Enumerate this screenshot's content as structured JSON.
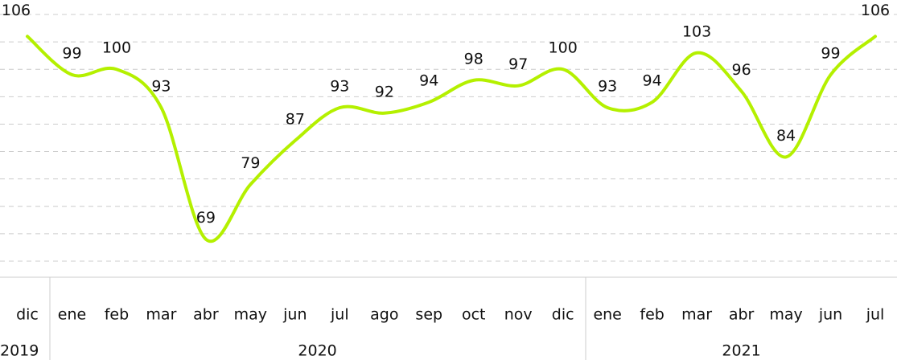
{
  "chart_data": {
    "type": "line",
    "groups": [
      {
        "label": "2019",
        "categories": [
          "dic"
        ]
      },
      {
        "label": "2020",
        "categories": [
          "ene",
          "feb",
          "mar",
          "abr",
          "may",
          "jun",
          "jul",
          "ago",
          "sep",
          "oct",
          "nov",
          "dic"
        ]
      },
      {
        "label": "2021",
        "categories": [
          "ene",
          "feb",
          "mar",
          "abr",
          "may",
          "jun",
          "jul"
        ]
      }
    ],
    "values": [
      106,
      99,
      100,
      93,
      69,
      79,
      87,
      93,
      92,
      94,
      98,
      97,
      100,
      93,
      94,
      103,
      96,
      84,
      99,
      106
    ],
    "color": "#b4f000",
    "ylim": [
      65,
      110
    ],
    "yticks": [
      65,
      70,
      75,
      80,
      85,
      90,
      95,
      100,
      105,
      110
    ],
    "grid": true
  }
}
